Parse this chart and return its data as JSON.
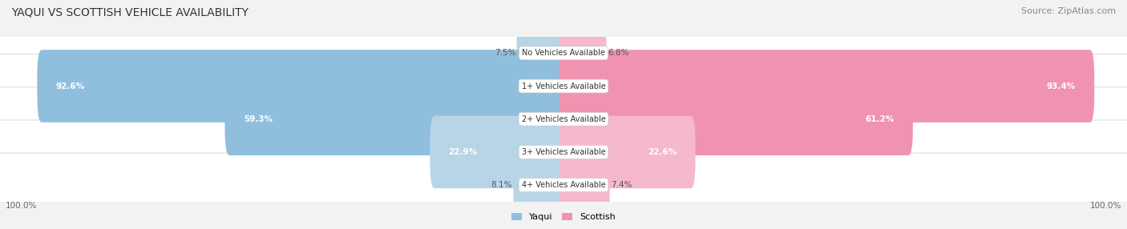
{
  "title": "YAQUI VS SCOTTISH VEHICLE AVAILABILITY",
  "source": "Source: ZipAtlas.com",
  "categories": [
    "No Vehicles Available",
    "1+ Vehicles Available",
    "2+ Vehicles Available",
    "3+ Vehicles Available",
    "4+ Vehicles Available"
  ],
  "yaqui_values": [
    7.5,
    92.6,
    59.3,
    22.9,
    8.1
  ],
  "scottish_values": [
    6.8,
    93.4,
    61.2,
    22.6,
    7.4
  ],
  "yaqui_color": "#8fbfdd",
  "scottish_color": "#f093b0",
  "yaqui_color_light": "#b8d5e8",
  "scottish_color_light": "#f5b8cc",
  "yaqui_label": "Yaqui",
  "scottish_label": "Scottish",
  "bg_color": "#f2f2f2",
  "row_bg_color": "#ffffff",
  "row_border_color": "#dddddd",
  "max_value": 100.0,
  "title_fontsize": 10,
  "source_fontsize": 8,
  "bar_label_fontsize": 7.5,
  "category_fontsize": 7,
  "legend_fontsize": 8,
  "bar_height": 0.6,
  "inside_label_threshold": 15
}
